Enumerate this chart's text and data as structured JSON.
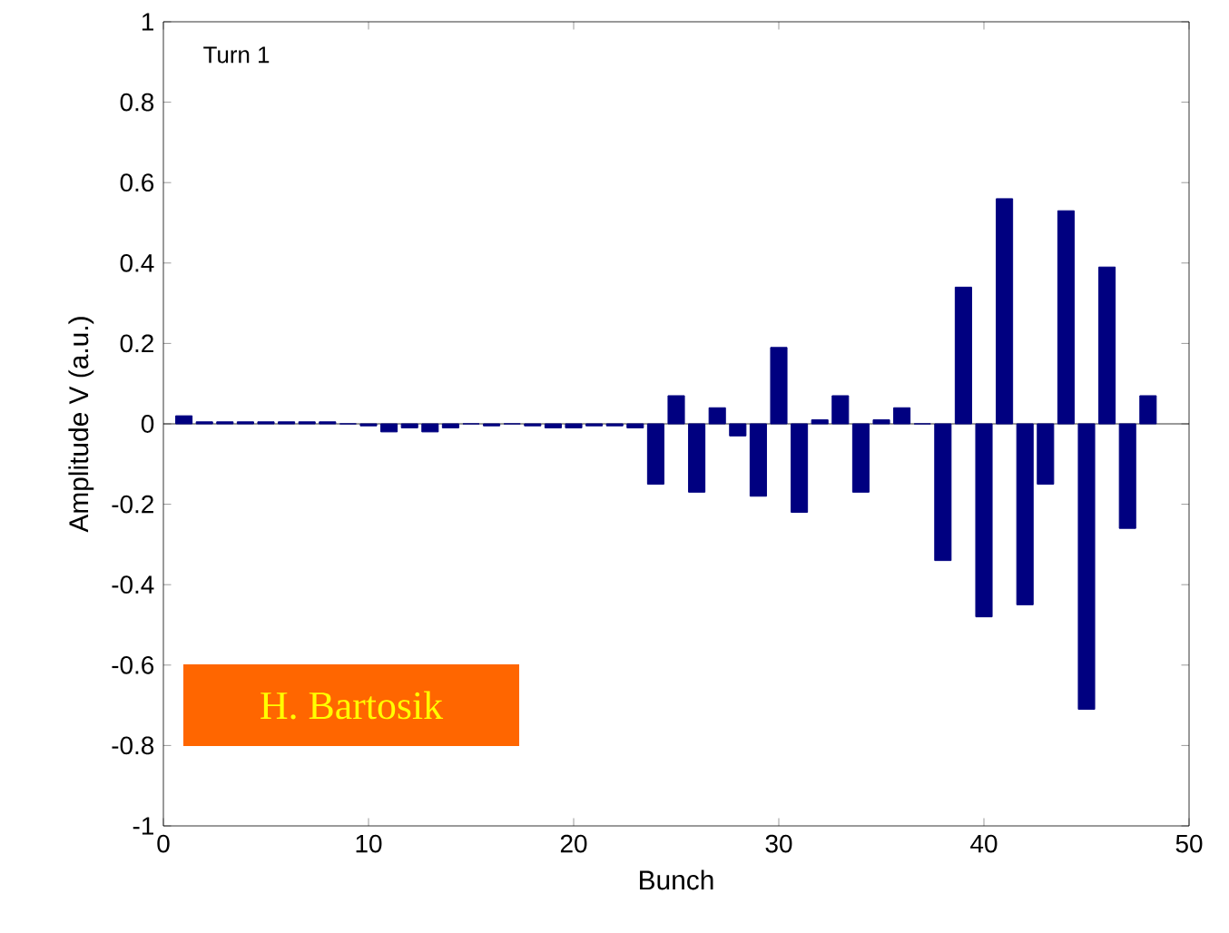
{
  "chart_data": {
    "type": "bar",
    "xlabel": "Bunch",
    "ylabel": "Amplitude V (a.u.)",
    "annotations": [
      "Turn 1",
      "H. Bartosik"
    ],
    "x": [
      1,
      2,
      3,
      4,
      5,
      6,
      7,
      8,
      9,
      10,
      11,
      12,
      13,
      14,
      15,
      16,
      17,
      18,
      19,
      20,
      21,
      22,
      23,
      24,
      25,
      26,
      27,
      28,
      29,
      30,
      31,
      32,
      33,
      34,
      35,
      36,
      37,
      38,
      39,
      40,
      41,
      42,
      43,
      44,
      45,
      46,
      47,
      48
    ],
    "values": [
      0.02,
      0.005,
      0.005,
      0.005,
      0.005,
      0.005,
      0.005,
      0.005,
      0,
      -0.005,
      -0.02,
      -0.01,
      -0.02,
      -0.01,
      0,
      -0.005,
      0,
      -0.005,
      -0.01,
      -0.01,
      -0.005,
      -0.005,
      -0.01,
      -0.15,
      0.07,
      -0.17,
      0.04,
      -0.03,
      -0.18,
      0.19,
      -0.22,
      0.01,
      0.07,
      -0.17,
      0.01,
      0.04,
      0,
      -0.34,
      0.34,
      -0.48,
      0.56,
      -0.45,
      -0.15,
      0.53,
      -0.71,
      0.39,
      -0.26,
      0.07
    ],
    "color": "#000080",
    "xlim": [
      0,
      50
    ],
    "ylim": [
      -1,
      1
    ],
    "xticks": [
      0,
      10,
      20,
      30,
      40,
      50
    ],
    "yticks": [
      -1,
      -0.8,
      -0.6,
      -0.4,
      -0.2,
      0,
      0.2,
      0.4,
      0.6,
      0.8,
      1
    ]
  }
}
